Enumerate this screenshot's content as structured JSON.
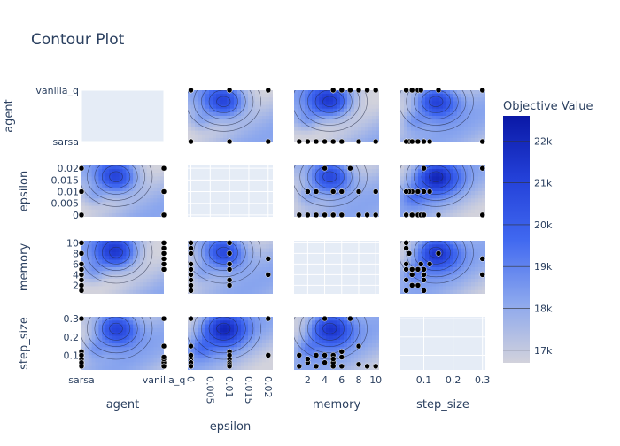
{
  "title": "Contour Plot",
  "colorbar": {
    "title": "Objective Value",
    "min": 16.7,
    "max": 22.6,
    "ticks": [
      {
        "v": 17,
        "label": "17k"
      },
      {
        "v": 18,
        "label": "18k"
      },
      {
        "v": 19,
        "label": "19k"
      },
      {
        "v": 20,
        "label": "20k"
      },
      {
        "v": 21,
        "label": "21k"
      },
      {
        "v": 22,
        "label": "22k"
      }
    ],
    "scale_colors": [
      "#d2d2dc",
      "#8aa6ee",
      "#4068f0",
      "#2340d8",
      "#0a18a6"
    ]
  },
  "axis_fontsize_hint": "small",
  "chart_data": {
    "type": "contour-matrix",
    "params": [
      "agent",
      "epsilon",
      "memory",
      "step_size"
    ],
    "axes": {
      "agent": {
        "label": "agent",
        "range": [
          0,
          1
        ],
        "ticks": [
          {
            "v": 0,
            "label": "sarsa"
          },
          {
            "v": 1,
            "label": "vanilla_q"
          }
        ]
      },
      "epsilon": {
        "label": "epsilon",
        "range": [
          -0.0008,
          0.0212
        ],
        "ticks": [
          {
            "v": 0,
            "label": "0"
          },
          {
            "v": 0.005,
            "label": "0.005"
          },
          {
            "v": 0.01,
            "label": "0.01"
          },
          {
            "v": 0.015,
            "label": "0.015"
          },
          {
            "v": 0.02,
            "label": "0.02"
          }
        ]
      },
      "memory": {
        "label": "memory",
        "range": [
          0.4,
          10.4
        ],
        "ticks": [
          {
            "v": 2,
            "label": "2"
          },
          {
            "v": 4,
            "label": "4"
          },
          {
            "v": 6,
            "label": "6"
          },
          {
            "v": 8,
            "label": "8"
          },
          {
            "v": 10,
            "label": "10"
          }
        ]
      },
      "step_size": {
        "label": "step_size",
        "range": [
          0.02,
          0.31
        ],
        "ticks": [
          {
            "v": 0.1,
            "label": "0.1"
          },
          {
            "v": 0.2,
            "label": "0.2"
          },
          {
            "v": 0.3,
            "label": "0.3"
          }
        ]
      }
    },
    "samples": {
      "agent": [
        0,
        0,
        0,
        0,
        0,
        0,
        0,
        0,
        0,
        1,
        1,
        1,
        1,
        0,
        0,
        1,
        0,
        1,
        1,
        0,
        0,
        0,
        0,
        1
      ],
      "epsilon": [
        0,
        0,
        0.01,
        0,
        0,
        0.02,
        0,
        0,
        0,
        0.01,
        0.01,
        0,
        0,
        0.01,
        0.01,
        0.02,
        0.01,
        0,
        0.01,
        0,
        0,
        0.01,
        0,
        0
      ],
      "memory": [
        1,
        2,
        2,
        3,
        4,
        4,
        5,
        5,
        5,
        5,
        5,
        5,
        6,
        6,
        6,
        7,
        8,
        8,
        10,
        10,
        1,
        3,
        4,
        9
      ],
      "step_size": [
        0.04,
        0.06,
        0.08,
        0.04,
        0.3,
        0.1,
        0.04,
        0.1,
        0.06,
        0.04,
        0.06,
        0.08,
        0.09,
        0.12,
        0.04,
        0.3,
        0.05,
        0.15,
        0.04,
        0.04,
        0.1,
        0.1,
        0.06,
        0.04
      ]
    }
  }
}
